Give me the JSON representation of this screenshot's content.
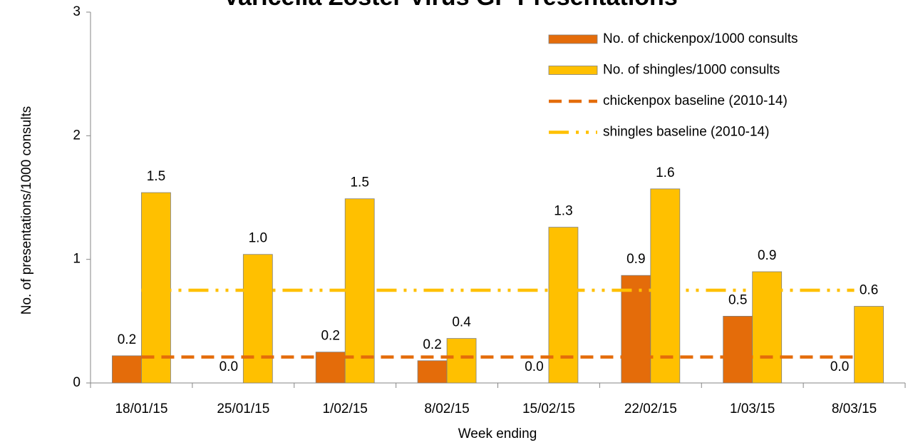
{
  "chart_data": {
    "type": "bar",
    "title": "Varicella Zoster Virus GP Presentations",
    "x_label": "Week ending",
    "y_label": "No. of presentations/1000 consults",
    "categories": [
      "18/01/15",
      "25/01/15",
      "1/02/15",
      "8/02/15",
      "15/02/15",
      "22/02/15",
      "1/03/15",
      "8/03/15"
    ],
    "series": [
      {
        "name": "No. of chickenpox/1000 consults",
        "color": "#e46c0a",
        "kind": "bar",
        "values": [
          0.22,
          0,
          0.25,
          0.18,
          0,
          0.87,
          0.54,
          0
        ],
        "value_labels": [
          "0.2",
          "0.0",
          "0.2",
          "0.2",
          "0.0",
          "0.9",
          "0.5",
          "0.0"
        ]
      },
      {
        "name": "No. of shingles/1000 consults",
        "color": "#ffc000",
        "kind": "bar",
        "values": [
          1.54,
          1.04,
          1.49,
          0.36,
          1.26,
          1.57,
          0.9,
          0.62
        ],
        "value_labels": [
          "1.5",
          "1.0",
          "1.5",
          "0.4",
          "1.3",
          "1.6",
          "0.9",
          "0.6"
        ]
      },
      {
        "name": "chickenpox baseline (2010-14)",
        "color": "#e46c0a",
        "kind": "line",
        "dash": "dash",
        "values": [
          0.21,
          0.21,
          0.21,
          0.21,
          0.21,
          0.21,
          0.21,
          0.21
        ]
      },
      {
        "name": "shingles baseline (2010-14)",
        "color": "#ffc000",
        "kind": "line",
        "dash": "dashdotdot",
        "values": [
          0.75,
          0.75,
          0.75,
          0.75,
          0.75,
          0.75,
          0.75,
          0.75
        ]
      }
    ],
    "ylim": [
      0,
      3
    ],
    "yticks": [
      0,
      1,
      2,
      3
    ],
    "legend": "upper right"
  }
}
